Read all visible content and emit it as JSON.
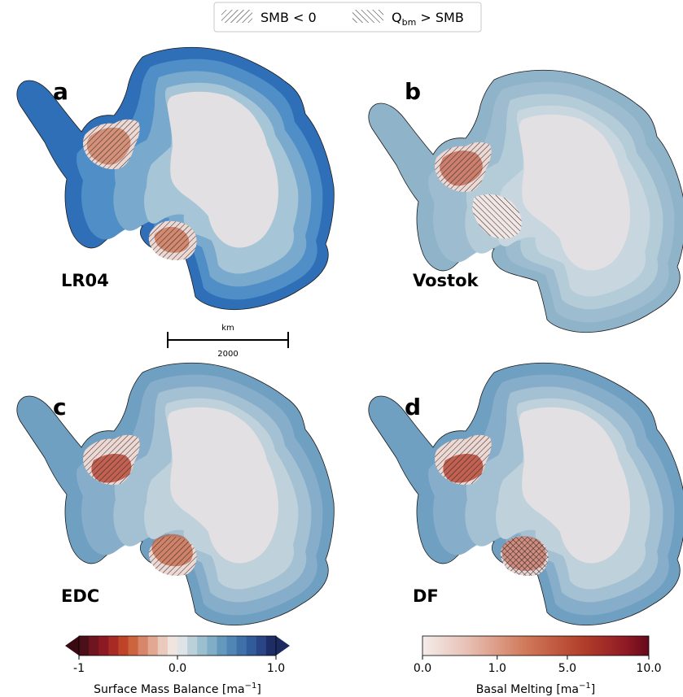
{
  "legend": {
    "smb_negative": "SMB < 0",
    "qbm_prefix": "Q",
    "qbm_sub": "bm",
    "qbm_suffix": " > SMB"
  },
  "panels": [
    {
      "letter": "a",
      "name": "LR04"
    },
    {
      "letter": "b",
      "name": "Vostok"
    },
    {
      "letter": "c",
      "name": "EDC"
    },
    {
      "letter": "d",
      "name": "DF"
    }
  ],
  "scalebar": {
    "unit": "km",
    "value": "2000"
  },
  "smb_colorbar": {
    "ticks": [
      "-1",
      "0.0",
      "1.0"
    ],
    "label_main": "Surface Mass Balance [ma",
    "label_sup": "−1",
    "label_end": "]",
    "colors": [
      "#4a0f19",
      "#6e1520",
      "#8c1a22",
      "#a82a24",
      "#bf4329",
      "#cd6440",
      "#d8866a",
      "#e2a891",
      "#ebcabe",
      "#f0e4df",
      "#dde3e7",
      "#bcd0da",
      "#9cbfcf",
      "#80aec6",
      "#6499bb",
      "#4f86b4",
      "#3f70a8",
      "#325b9c",
      "#2a4585",
      "#1f2d66"
    ]
  },
  "bm_colorbar": {
    "ticks": [
      "0.0",
      "1.0",
      "5.0",
      "10.0"
    ],
    "label_main": "Basal Melting [ma",
    "label_sup": "−1",
    "label_end": "]",
    "colors": [
      "#f4ecea",
      "#7a0b1d"
    ]
  },
  "colors": {
    "interior": "#e2e0e2",
    "ring2": "#bfd1db",
    "ring3": "#a3c2d1",
    "ring4": "#87b2c8",
    "ring5": "#6a9fc0",
    "coast_a": "#3d78bb",
    "coast_a_dark": "#2a62ad",
    "melt_light": "#ecd6d2",
    "melt_dark": "#b33a26",
    "outline": "#1a1a1a"
  }
}
